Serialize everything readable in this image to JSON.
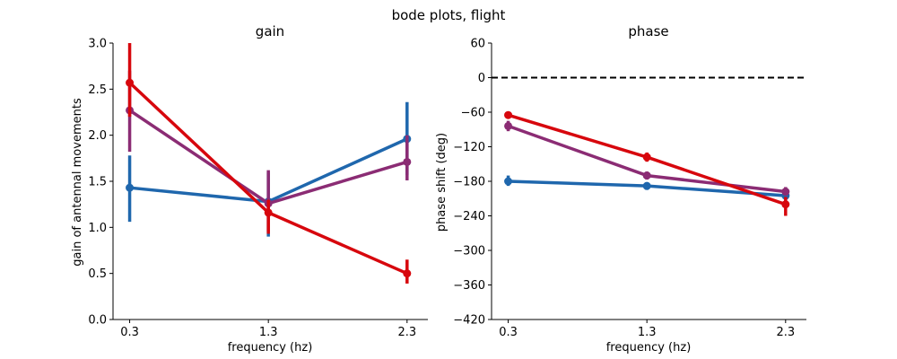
{
  "figure": {
    "suptitle": "bode plots, flight"
  },
  "chart_data": [
    {
      "type": "line",
      "title": "gain",
      "xlabel": "frequency (hz)",
      "ylabel": "gain of antennal movements",
      "x_ticks": [
        "0.3",
        "1.3",
        "2.3"
      ],
      "x": [
        0.3,
        1.3,
        2.3
      ],
      "ylim": [
        0,
        3.0
      ],
      "y_ticks": [
        "0.0",
        "0.5",
        "1.0",
        "1.5",
        "2.0",
        "2.5",
        "3.0"
      ],
      "grid": false,
      "series": [
        {
          "color": "#1f67ad",
          "values": [
            1.43,
            1.28,
            1.96
          ],
          "err_low": [
            1.06,
            0.9,
            1.57
          ],
          "err_high": [
            1.78,
            1.6,
            2.36
          ]
        },
        {
          "color": "#8b2c74",
          "values": [
            2.27,
            1.26,
            1.71
          ],
          "err_low": [
            1.82,
            0.95,
            1.51
          ],
          "err_high": [
            2.7,
            1.62,
            2.0
          ]
        },
        {
          "color": "#d7070d",
          "values": [
            2.57,
            1.16,
            0.5
          ],
          "err_low": [
            2.2,
            0.93,
            0.39
          ],
          "err_high": [
            3.0,
            1.3,
            0.65
          ]
        }
      ]
    },
    {
      "type": "line",
      "title": "phase",
      "xlabel": "frequency (hz)",
      "ylabel": "phase shift (deg)",
      "x_ticks": [
        "0.3",
        "1.3",
        "2.3"
      ],
      "x": [
        0.3,
        1.3,
        2.3
      ],
      "ylim": [
        -420,
        60
      ],
      "y_ticks": [
        "60",
        "0",
        "−60",
        "−120",
        "−180",
        "−240",
        "−300",
        "−360",
        "−420"
      ],
      "reference_line": {
        "y": 0,
        "style": "dashed",
        "color": "#000000"
      },
      "grid": false,
      "series": [
        {
          "color": "#1f67ad",
          "values": [
            -180,
            -188,
            -205
          ],
          "err_low": [
            -188,
            -195,
            -212
          ],
          "err_high": [
            -170,
            -182,
            -198
          ]
        },
        {
          "color": "#8b2c74",
          "values": [
            -84,
            -170,
            -198
          ],
          "err_low": [
            -93,
            -177,
            -205
          ],
          "err_high": [
            -75,
            -163,
            -190
          ]
        },
        {
          "color": "#d7070d",
          "values": [
            -65,
            -138,
            -220
          ],
          "err_low": [
            -69,
            -146,
            -240
          ],
          "err_high": [
            -61,
            -130,
            -207
          ]
        }
      ]
    }
  ]
}
